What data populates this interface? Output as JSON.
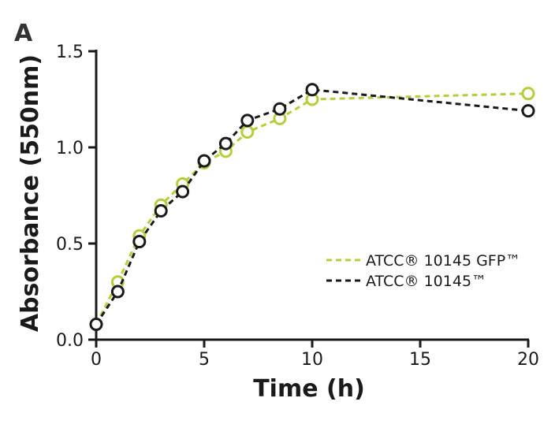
{
  "panel_label": "A",
  "chart_data": {
    "type": "line",
    "title": "",
    "xlabel": "Time (h)",
    "ylabel": "Absorbance (550nm)",
    "xlim": [
      0,
      20
    ],
    "ylim": [
      0,
      1.5
    ],
    "xticks": [
      0,
      5,
      10,
      15,
      20
    ],
    "yticks": [
      0.0,
      0.5,
      1.0,
      1.5
    ],
    "xtick_labels": [
      "0",
      "5",
      "10",
      "15",
      "20"
    ],
    "ytick_labels": [
      "0.0",
      "0.5",
      "1.0",
      "1.5"
    ],
    "grid": false,
    "legend_position": "lower-right",
    "series": [
      {
        "name": "ATCC® 10145 GFP™",
        "color": "#b5cf3b",
        "line_style": "dashed",
        "marker": "open-circle",
        "x": [
          0,
          1,
          2,
          3,
          4,
          5,
          6,
          7,
          8.5,
          10,
          20
        ],
        "y": [
          0.08,
          0.3,
          0.54,
          0.7,
          0.81,
          0.92,
          0.98,
          1.08,
          1.15,
          1.25,
          1.28
        ]
      },
      {
        "name": "ATCC® 10145™",
        "color": "#1a1a1a",
        "line_style": "dashed",
        "marker": "open-circle",
        "x": [
          0,
          1,
          2,
          3,
          4,
          5,
          6,
          7,
          8.5,
          10,
          20
        ],
        "y": [
          0.08,
          0.25,
          0.51,
          0.67,
          0.77,
          0.93,
          1.02,
          1.14,
          1.2,
          1.3,
          1.19
        ]
      }
    ]
  }
}
